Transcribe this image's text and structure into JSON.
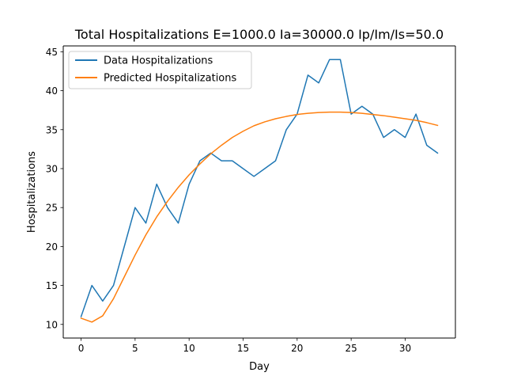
{
  "chart_data": {
    "type": "line",
    "title": "Total Hospitalizations E=1000.0 Ia=30000.0 Ip/Im/Is=50.0",
    "xlabel": "Day",
    "ylabel": "Hospitalizations",
    "xlim": [
      -1.65,
      34.65
    ],
    "ylim": [
      8.25,
      45.75
    ],
    "xticks": [
      0,
      5,
      10,
      15,
      20,
      25,
      30
    ],
    "yticks": [
      10,
      15,
      20,
      25,
      30,
      35,
      40,
      45
    ],
    "grid": false,
    "legend_position": "upper-left",
    "x": [
      0,
      1,
      2,
      3,
      4,
      5,
      6,
      7,
      8,
      9,
      10,
      11,
      12,
      13,
      14,
      15,
      16,
      17,
      18,
      19,
      20,
      21,
      22,
      23,
      24,
      25,
      26,
      27,
      28,
      29,
      30,
      31,
      32,
      33
    ],
    "series": [
      {
        "name": "Data Hospitalizations",
        "color": "#1f77b4",
        "values": [
          11,
          15,
          13,
          15,
          20,
          25,
          23,
          28,
          25,
          23,
          28,
          31,
          32,
          31,
          31,
          30,
          29,
          30,
          31,
          35,
          37,
          42,
          41,
          44,
          44,
          37,
          38,
          37,
          34,
          35,
          34,
          37,
          33,
          32
        ]
      },
      {
        "name": "Predicted Hospitalizations",
        "color": "#ff7f0e",
        "values": [
          10.8,
          10.3,
          11.1,
          13.3,
          16.1,
          18.9,
          21.5,
          23.8,
          25.8,
          27.6,
          29.2,
          30.6,
          31.9,
          33.0,
          34.0,
          34.8,
          35.5,
          36.0,
          36.4,
          36.7,
          36.95,
          37.1,
          37.2,
          37.25,
          37.25,
          37.2,
          37.1,
          36.95,
          36.8,
          36.6,
          36.4,
          36.2,
          35.9,
          35.55
        ]
      }
    ]
  }
}
